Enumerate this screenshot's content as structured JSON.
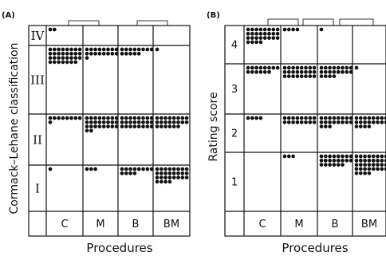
{
  "chart_data": [
    {
      "type": "dot-grid",
      "panel_label": "(A)",
      "xlabel": "Procedures",
      "ylabel": "Cormack–Lehane classification",
      "categories": [
        "C",
        "M",
        "B",
        "BM"
      ],
      "rows": [
        "IV",
        "III",
        "II",
        "I"
      ],
      "dot_counts": [
        [
          2,
          0,
          0,
          0
        ],
        [
          31,
          17,
          13,
          1
        ],
        [
          9,
          26,
          24,
          22
        ],
        [
          1,
          3,
          12,
          28
        ]
      ]
    },
    {
      "type": "dot-grid",
      "panel_label": "(B)",
      "xlabel": "Procedures",
      "ylabel": "Rating score",
      "categories": [
        "C",
        "M",
        "B",
        "BM"
      ],
      "rows": [
        "4",
        "3",
        "2",
        "1"
      ],
      "dot_counts": [
        [
          28,
          4,
          1,
          0
        ],
        [
          14,
          24,
          20,
          1
        ],
        [
          4,
          16,
          19,
          20
        ],
        [
          0,
          3,
          22,
          36
        ]
      ]
    }
  ]
}
